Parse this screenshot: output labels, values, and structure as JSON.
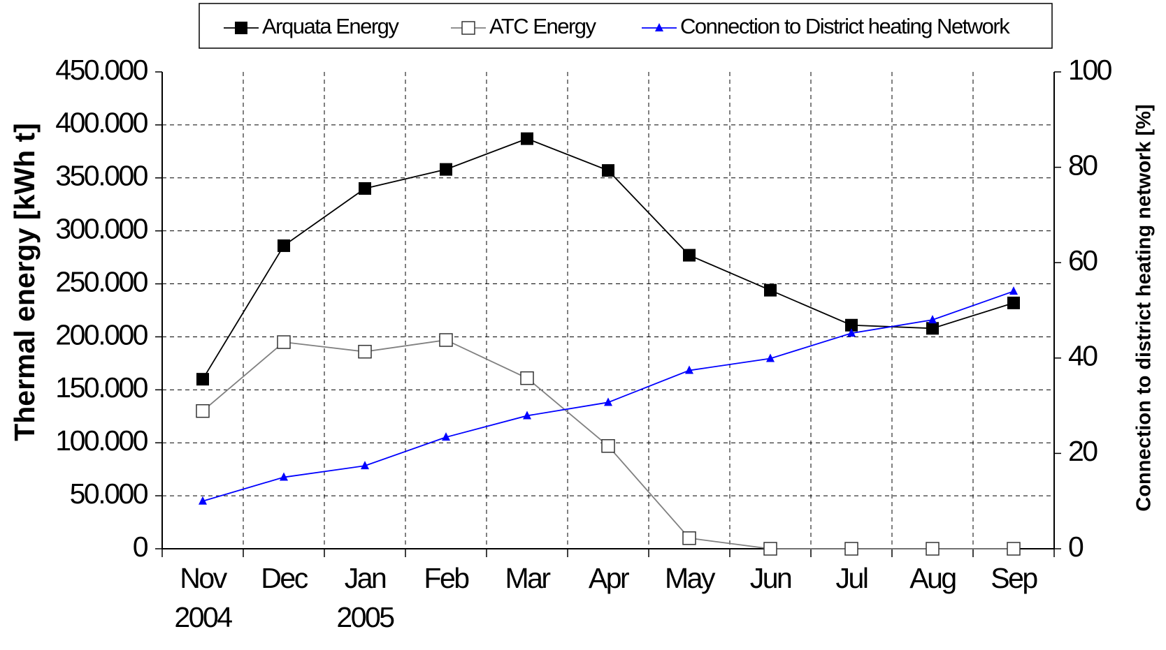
{
  "chart_data": {
    "type": "line",
    "categories": [
      "Nov 2004",
      "Dec",
      "Jan 2005",
      "Feb",
      "Mar",
      "Apr",
      "May",
      "Jun",
      "Jul",
      "Aug",
      "Sep"
    ],
    "series": [
      {
        "name": "Arquata Energy",
        "color": "#000000",
        "marker": "square-filled",
        "values": [
          160000,
          286000,
          340000,
          358000,
          387000,
          357000,
          277000,
          244000,
          211000,
          208000,
          232000
        ]
      },
      {
        "name": "ATC Energy",
        "color": "#808080",
        "marker": "square-open",
        "values": [
          130000,
          195000,
          186000,
          197000,
          161000,
          97000,
          10000,
          0,
          0,
          0,
          0
        ]
      },
      {
        "name": "Connection to District heating Network",
        "color": "#0000ff",
        "marker": "triangle",
        "axis": "y2",
        "values": [
          10,
          15,
          17.4,
          23.4,
          27.9,
          30.7,
          37.4,
          39.9,
          45.2,
          48,
          54
        ]
      }
    ],
    "y_label": "Thermal energy [kWh t]",
    "y2_label": "Connection to district heating network [%]",
    "ylim": [
      0,
      450000
    ],
    "yticks": [
      0,
      {
        "value": 50000,
        "label": "50.000"
      },
      {
        "value": 100000,
        "label": "100.000"
      },
      {
        "value": 150000,
        "label": "150.000"
      },
      {
        "value": 200000,
        "label": "200.000"
      },
      {
        "value": 250000,
        "label": "250.000"
      },
      {
        "value": 300000,
        "label": "300.000"
      },
      {
        "value": 350000,
        "label": "350.000"
      },
      {
        "value": 400000,
        "label": "400.000"
      },
      {
        "value": 450000,
        "label": "450.000"
      }
    ],
    "y2lim": [
      0,
      100
    ],
    "y2ticks": [
      0,
      20,
      40,
      60,
      80,
      100
    ],
    "grid": true,
    "legend": "top"
  }
}
